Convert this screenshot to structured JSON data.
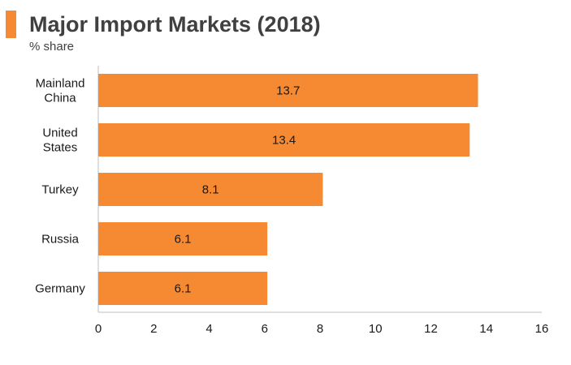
{
  "header": {
    "title": "Major Import Markets (2018)",
    "subtitle": "% share",
    "accent_color": "#f58a33"
  },
  "chart_data": {
    "type": "bar",
    "orientation": "horizontal",
    "title": "Major Import Markets (2018)",
    "subtitle": "% share",
    "xlabel": "",
    "ylabel": "",
    "categories": [
      [
        "Mainland",
        "China"
      ],
      [
        "United",
        "States"
      ],
      [
        "Turkey"
      ],
      [
        "Russia"
      ],
      [
        "Germany"
      ]
    ],
    "values": [
      13.7,
      13.4,
      8.1,
      6.1,
      6.1
    ],
    "data_labels": [
      "13.7",
      "13.4",
      "8.1",
      "6.1",
      "6.1"
    ],
    "xlim": [
      0,
      16
    ],
    "xticks": [
      "0",
      "2",
      "4",
      "6",
      "8",
      "10",
      "12",
      "14",
      "16"
    ],
    "bar_color": "#f58a33",
    "grid": false,
    "legend": "none"
  }
}
